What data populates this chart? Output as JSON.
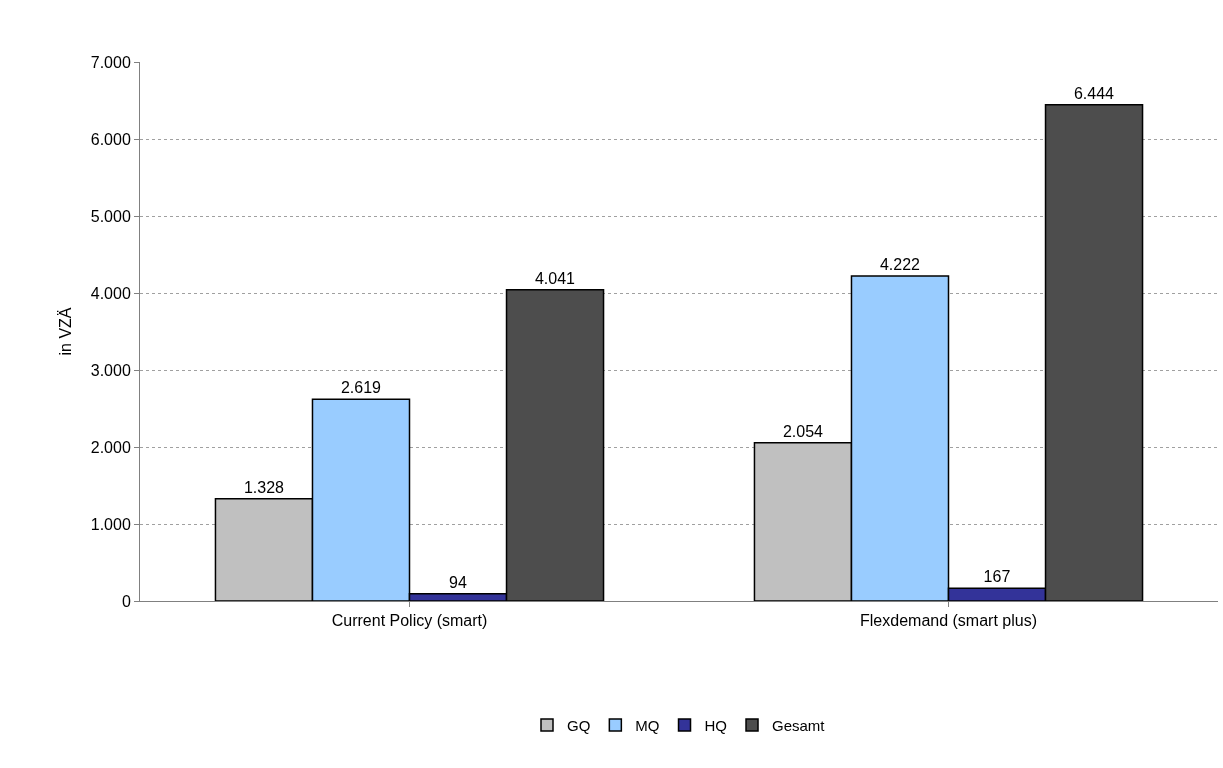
{
  "chart_data": {
    "type": "bar",
    "ylabel": "in VZÄ",
    "categories": [
      "Current Policy (smart)",
      "Flexdemand (smart plus)"
    ],
    "series": [
      {
        "name": "GQ",
        "color": "#c0c0c0",
        "values": [
          1328,
          2054
        ],
        "value_labels": [
          "1.328",
          "2.054"
        ]
      },
      {
        "name": "MQ",
        "color": "#99ccff",
        "values": [
          2619,
          4222
        ],
        "value_labels": [
          "2.619",
          "4.222"
        ]
      },
      {
        "name": "HQ",
        "color": "#333399",
        "values": [
          94,
          167
        ],
        "value_labels": [
          "94",
          "167"
        ]
      },
      {
        "name": "Gesamt",
        "color": "#4d4d4d",
        "values": [
          4041,
          6444
        ],
        "value_labels": [
          "4.041",
          "6.444"
        ]
      }
    ],
    "ylim": [
      0,
      7000
    ],
    "yticks": [
      0,
      {
        "value": 1000,
        "label": "1.000"
      },
      {
        "value": 2000,
        "label": "2.000"
      },
      {
        "value": 3000,
        "label": "3.000"
      },
      {
        "value": 4000,
        "label": "4.000"
      },
      {
        "value": 5000,
        "label": "5.000"
      },
      {
        "value": 6000,
        "label": "6.000"
      },
      {
        "value": 7000,
        "label": "7.000"
      }
    ],
    "grid": "y",
    "legend": "bottom"
  }
}
